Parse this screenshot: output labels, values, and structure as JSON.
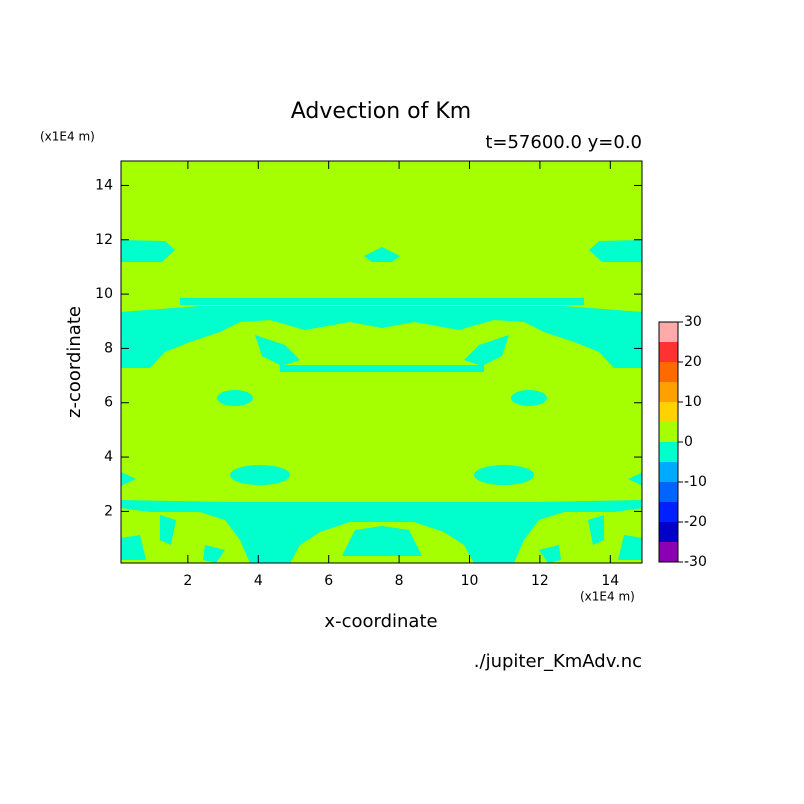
{
  "chart_data": {
    "type": "contour",
    "title": "Advection of Km",
    "subtitle": "t=57600.0 y=0.0",
    "x_label": "x-coordinate",
    "y_label": "z-coordinate",
    "x_unit": "(x1E4 m)",
    "y_unit": "(x1E4 m)",
    "footer": "./jupiter_KmAdv.nc",
    "xlim": [
      0.1,
      14.9
    ],
    "ylim": [
      0.1,
      14.9
    ],
    "xticks": [
      2,
      4,
      6,
      8,
      10,
      12,
      14
    ],
    "yticks": [
      2,
      4,
      6,
      8,
      10,
      12,
      14
    ],
    "levels": [
      -30,
      -25,
      -20,
      -15,
      -10,
      -5,
      0,
      5,
      10,
      15,
      20,
      25,
      30
    ],
    "colors": [
      "#8c00b4",
      "#0000c8",
      "#0020ff",
      "#0064ff",
      "#00aaff",
      "#00ffcc",
      "#a6ff00",
      "#ffd200",
      "#ffa000",
      "#ff6a00",
      "#ff3232",
      "#ffaaaa"
    ]
  }
}
